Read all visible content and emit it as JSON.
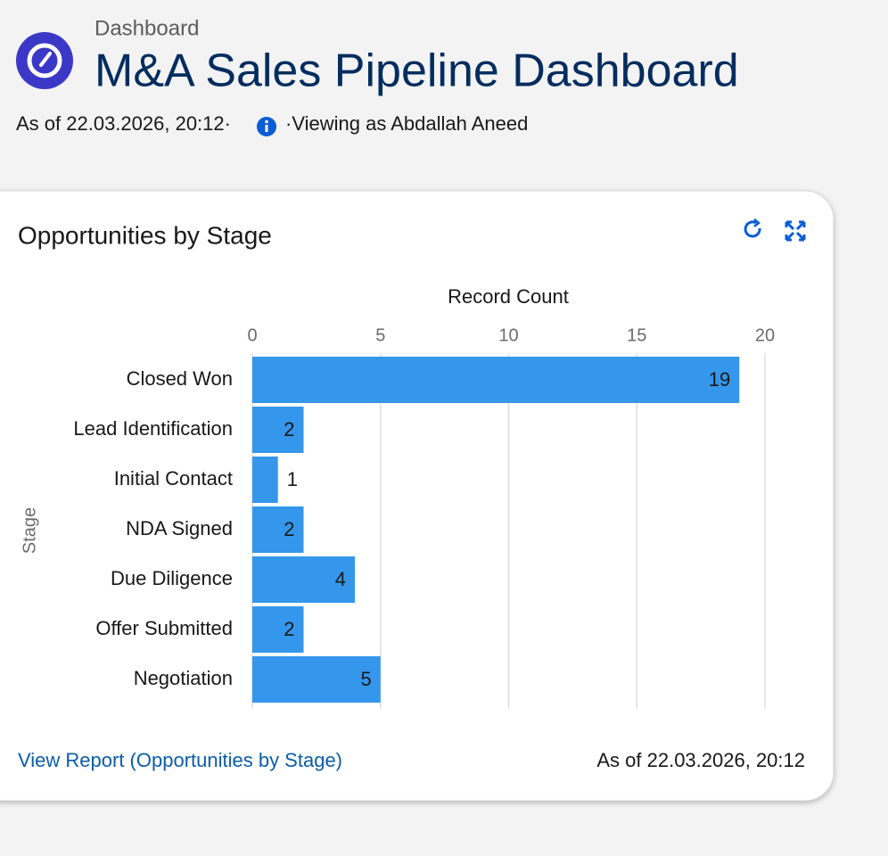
{
  "header": {
    "breadcrumb": "Dashboard",
    "title": "M&A Sales Pipeline Dashboard",
    "as_of": "As of 22.03.2026, 20:12·",
    "viewing": "·Viewing as Abdallah Aneed"
  },
  "widget": {
    "title": "Opportunities by Stage",
    "footer_link": "View Report (Opportunities by Stage)",
    "footer_as_of": "As of 22.03.2026, 20:12"
  },
  "chart_data": {
    "type": "bar",
    "orientation": "horizontal",
    "x_label": "Record Count",
    "y_label": "Stage",
    "categories": [
      "Closed Won",
      "Lead Identification",
      "Initial Contact",
      "NDA Signed",
      "Due Diligence",
      "Offer Submitted",
      "Negotiation"
    ],
    "values": [
      19,
      2,
      1,
      2,
      4,
      2,
      5
    ],
    "color": "#3597ec",
    "xlim": [
      0,
      20
    ],
    "xticks": [
      0,
      5,
      10,
      15,
      20
    ],
    "grid": true
  }
}
